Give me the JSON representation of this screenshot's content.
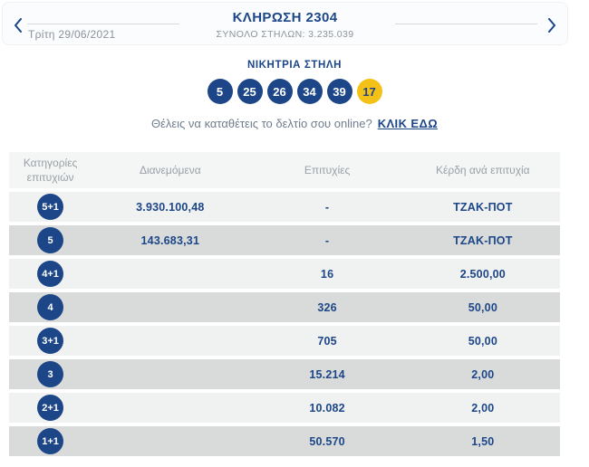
{
  "header": {
    "title": "ΚΛΗΡΩΣΗ 2304",
    "subtitle": "ΣΥΝΟΛΟ ΣΤΗΛΩΝ: 3.235.039",
    "date": "Τρίτη 29/06/2021"
  },
  "winning": {
    "label": "ΝΙΚΗΤΡΙΑ ΣΤΗΛΗ",
    "numbers": [
      "5",
      "25",
      "26",
      "34",
      "39"
    ],
    "joker": "17"
  },
  "cta": {
    "text": "Θέλεις να καταθέτεις το δελτίο σου online?",
    "link": "ΚΛΙΚ ΕΔΩ"
  },
  "table": {
    "columns": [
      "Κατηγορίες επιτυχιών",
      "Διανεμόμενα",
      "Επιτυχίες",
      "Κέρδη ανά επιτυχία"
    ],
    "rows": [
      {
        "category": "5+1",
        "distributed": "3.930.100,48",
        "winners": "-",
        "prize": "ΤΖΑΚ-ΠΟΤ"
      },
      {
        "category": "5",
        "distributed": "143.683,31",
        "winners": "-",
        "prize": "ΤΖΑΚ-ΠΟΤ"
      },
      {
        "category": "4+1",
        "distributed": "",
        "winners": "16",
        "prize": "2.500,00"
      },
      {
        "category": "4",
        "distributed": "",
        "winners": "326",
        "prize": "50,00"
      },
      {
        "category": "3+1",
        "distributed": "",
        "winners": "705",
        "prize": "50,00"
      },
      {
        "category": "3",
        "distributed": "",
        "winners": "15.214",
        "prize": "2,00"
      },
      {
        "category": "2+1",
        "distributed": "",
        "winners": "10.082",
        "prize": "2,00"
      },
      {
        "category": "1+1",
        "distributed": "",
        "winners": "50.570",
        "prize": "1,50"
      }
    ]
  },
  "colors": {
    "navy": "#1c4687",
    "joker_yellow": "#f3c117",
    "row_light": "#f0f1f1",
    "row_dark": "#d9dbdb",
    "header_gray": "#9aa0a6"
  }
}
